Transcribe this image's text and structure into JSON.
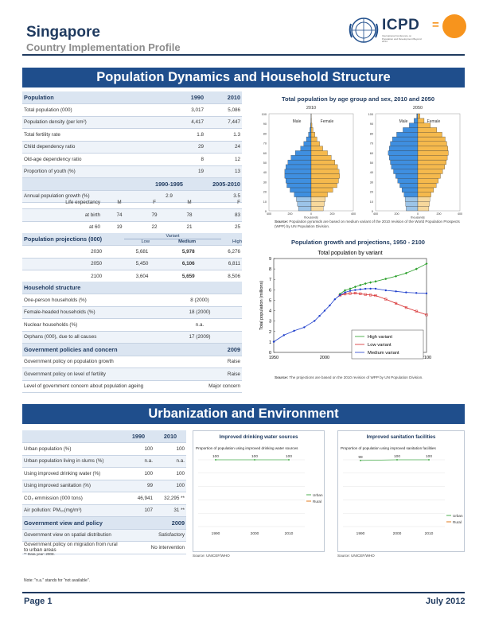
{
  "header": {
    "country": "Singapore",
    "subtitle": "Country Implementation Profile",
    "logo_text": "ICPD",
    "logo_sub": "International Conference on Population and Development Beyond 2014",
    "logo_eq": "="
  },
  "section1": {
    "title": "Population Dynamics and Household Structure"
  },
  "population": {
    "label": "Population",
    "col1": "1990",
    "col2": "2010",
    "rows": [
      {
        "label": "Total population (000)",
        "v1": "3,017",
        "v2": "5,086"
      },
      {
        "label": "Population density (per km²)",
        "v1": "4,417",
        "v2": "7,447"
      },
      {
        "label": "Total fertility rate",
        "v1": "1.8",
        "v2": "1.3"
      },
      {
        "label": "Child dependency ratio",
        "v1": "29",
        "v2": "24"
      },
      {
        "label": "Old-age dependency ratio",
        "v1": "8",
        "v2": "12"
      },
      {
        "label": "Proportion of youth (%)",
        "v1": "19",
        "v2": "13"
      }
    ],
    "period1": "1990-1995",
    "period2": "2005-2010",
    "growth_label": "Annual population growth (%)",
    "growth_v1": "2.9",
    "growth_v2": "3.5",
    "le_label": "Life expectancy",
    "sex_headers": [
      "M",
      "F",
      "M",
      "F"
    ],
    "birth_label": "at birth",
    "birth_values": [
      "74",
      "79",
      "78",
      "83"
    ],
    "sixty_label": "at 60",
    "sixty_values": [
      "19",
      "22",
      "21",
      "25"
    ]
  },
  "projections": {
    "label": "Population projections (000)",
    "variant_label": "Variant",
    "variants": [
      "Low",
      "Medium",
      "High"
    ],
    "rows": [
      {
        "year": "2030",
        "low": "5,681",
        "medium": "5,978",
        "high": "6,276"
      },
      {
        "year": "2050",
        "low": "5,450",
        "medium": "6,106",
        "high": "6,811"
      },
      {
        "year": "2100",
        "low": "3,604",
        "medium": "5,659",
        "high": "8,506"
      }
    ]
  },
  "household": {
    "label": "Household structure",
    "rows": [
      {
        "label": "One-person households (%)",
        "value": "8 (2000)"
      },
      {
        "label": "Female-headed households (%)",
        "value": "18 (2000)"
      },
      {
        "label": "Nuclear households (%)",
        "value": "n.a."
      },
      {
        "label": "Orphans (000), due to all causes",
        "value": "17 (2009)"
      }
    ]
  },
  "policies": {
    "label": "Government policies and concern",
    "year": "2009",
    "rows": [
      {
        "label": "Government policy on population growth",
        "value": "Raise"
      },
      {
        "label": "Government policy on level of fertility",
        "value": "Raise"
      },
      {
        "label": "Level of government concern about population ageing",
        "value": "Major concern"
      }
    ]
  },
  "pyramid": {
    "title": "Total population by age group and sex, 2010 and 2050",
    "years": [
      "2010",
      "2050"
    ],
    "male_label": "Male",
    "female_label": "Female",
    "age_ticks": [
      "100",
      "90",
      "80",
      "70",
      "60",
      "50",
      "40",
      "30",
      "20",
      "10",
      "0"
    ],
    "x_ticks": [
      "400",
      "200",
      "0",
      "200",
      "400"
    ],
    "x_label": "thousands",
    "colors": {
      "male": "#3f8fe0",
      "female": "#f5b94d",
      "male_light": "#9cc4e8",
      "female_light": "#f7d89c",
      "outline": "#333333"
    },
    "source_label": "Source:",
    "source_text": "Population pyramids are based on medium variant of the 2010 revision of the World Population Prospects (WPP) by UN Population Division."
  },
  "growth_chart": {
    "title": "Population growth and projections, 1950 - 2100",
    "source_label": "Source:",
    "source_text": "The projections are based on the 2010 revision of WPP by UN Population Division."
  },
  "section2": {
    "title": "Urbanization and Environment"
  },
  "urban": {
    "col1": "1990",
    "col2": "2010",
    "rows": [
      {
        "label": "Urban population (%)",
        "v1": "100",
        "v2": "100"
      },
      {
        "label": "Urban population living in slums (%)",
        "v1": "n.a.",
        "v2": "n.a."
      },
      {
        "label": "Using improved drinking water (%)",
        "v1": "100",
        "v2": "100"
      },
      {
        "label": "Using improved sanitation (%)",
        "v1": "99",
        "v2": "100"
      },
      {
        "label": "CO₂ emmission (000 tons)",
        "v1": "46,941",
        "v2": "32,295 **"
      },
      {
        "label": "Air pollution: PM₁₀(mg/m³)",
        "v1": "107",
        "v2": "31 **"
      }
    ],
    "view_label": "Government view and policy",
    "view_year": "2009",
    "view_rows": [
      {
        "label": "Government view on spatial distribution",
        "value": "Satisfactory"
      },
      {
        "label": "Government policy on migration from rural to urban areas",
        "value": "No intervention"
      }
    ],
    "footnote": "** Data year: 2008."
  },
  "water_chart": {
    "title": "Improved drinking water sources",
    "subtitle": "Proportion of population using improved drinking water sources",
    "source": "Source: UNICEF/WHO"
  },
  "sanitation_chart": {
    "title": "Improved sanitation facilities",
    "subtitle": "Proportion of population using improved sanitation facilities",
    "source": "Source: UNICEF/WHO"
  },
  "note": "Note: \"n.a.\" stands for \"not available\".",
  "footer": {
    "page": "Page 1",
    "date": "July 2012"
  },
  "chart_data": [
    {
      "type": "line",
      "title": "Total population by variant",
      "xlabel": "",
      "ylabel": "Total population (millions)",
      "xlim": [
        1950,
        2100
      ],
      "ylim": [
        0,
        9
      ],
      "x_ticks": [
        "1950",
        "2000",
        "2050",
        "2100"
      ],
      "y_ticks": [
        "0",
        "1",
        "2",
        "3",
        "4",
        "5",
        "6",
        "7",
        "8",
        "9"
      ],
      "legend_position": "bottom-right",
      "series": [
        {
          "name": "High variant",
          "color": "#2ca02c",
          "marker": "diamond",
          "x": [
            2015,
            2020,
            2025,
            2030,
            2035,
            2040,
            2045,
            2050,
            2060,
            2070,
            2080,
            2090,
            2100
          ],
          "y": [
            5.6,
            5.95,
            6.1,
            6.28,
            6.45,
            6.6,
            6.7,
            6.81,
            7.05,
            7.3,
            7.6,
            8.0,
            8.5
          ]
        },
        {
          "name": "Low variant",
          "color": "#d62728",
          "marker": "square",
          "x": [
            2015,
            2020,
            2025,
            2030,
            2035,
            2040,
            2045,
            2050,
            2060,
            2070,
            2080,
            2090,
            2100
          ],
          "y": [
            5.45,
            5.6,
            5.65,
            5.68,
            5.62,
            5.55,
            5.5,
            5.45,
            5.1,
            4.7,
            4.3,
            3.95,
            3.6
          ]
        },
        {
          "name": "Medium variant",
          "color": "#1f3fcc",
          "marker": "circle",
          "x": [
            1950,
            1960,
            1970,
            1980,
            1990,
            1995,
            2000,
            2005,
            2010,
            2015,
            2020,
            2025,
            2030,
            2035,
            2040,
            2045,
            2050,
            2060,
            2070,
            2080,
            2090,
            2100
          ],
          "y": [
            1.02,
            1.65,
            2.07,
            2.41,
            3.02,
            3.5,
            4.0,
            4.5,
            5.09,
            5.5,
            5.75,
            5.9,
            5.98,
            6.05,
            6.1,
            6.11,
            6.11,
            5.95,
            5.85,
            5.75,
            5.7,
            5.66
          ]
        }
      ]
    },
    {
      "type": "line",
      "title": "Improved drinking water sources",
      "x": [
        1990,
        2000,
        2010
      ],
      "series": [
        {
          "name": "Urban",
          "color": "#4caf50",
          "values": [
            100,
            100,
            100
          ]
        },
        {
          "name": "Rural",
          "color": "#e07b1f",
          "values": [
            null,
            null,
            null
          ]
        }
      ],
      "data_labels": [
        "100",
        "100",
        "100"
      ],
      "x_ticks": [
        "1990",
        "2000",
        "2010"
      ],
      "ylim": [
        0,
        100
      ],
      "legend_position": "right"
    },
    {
      "type": "line",
      "title": "Improved sanitation facilities",
      "x": [
        1990,
        2000,
        2010
      ],
      "series": [
        {
          "name": "Urban",
          "color": "#4caf50",
          "values": [
            99,
            100,
            100
          ]
        },
        {
          "name": "Rural",
          "color": "#e07b1f",
          "values": [
            null,
            null,
            null
          ]
        }
      ],
      "data_labels": [
        "99",
        "100",
        "100"
      ],
      "x_ticks": [
        "1990",
        "2000",
        "2010"
      ],
      "ylim": [
        0,
        100
      ],
      "legend_position": "bottom-right"
    },
    {
      "type": "bar",
      "title": "",
      "year": "2010",
      "age_groups": [
        "0",
        "5",
        "10",
        "15",
        "20",
        "25",
        "30",
        "35",
        "40",
        "45",
        "50",
        "55",
        "60",
        "65",
        "70",
        "75",
        "80",
        "85",
        "90",
        "95",
        "100"
      ],
      "series": [
        {
          "name": "Male",
          "values": [
            120,
            130,
            140,
            160,
            200,
            230,
            240,
            250,
            250,
            240,
            220,
            190,
            150,
            100,
            70,
            45,
            25,
            12,
            5,
            2,
            1
          ]
        },
        {
          "name": "Female",
          "values": [
            115,
            125,
            135,
            155,
            205,
            245,
            260,
            270,
            265,
            250,
            225,
            190,
            155,
            110,
            80,
            55,
            35,
            18,
            8,
            3,
            1
          ]
        }
      ],
      "xlim": [
        -400,
        400
      ]
    },
    {
      "type": "bar",
      "title": "",
      "year": "2050",
      "age_groups": [
        "0",
        "5",
        "10",
        "15",
        "20",
        "25",
        "30",
        "35",
        "40",
        "45",
        "50",
        "55",
        "60",
        "65",
        "70",
        "75",
        "80",
        "85",
        "90",
        "95",
        "100"
      ],
      "series": [
        {
          "name": "Male",
          "values": [
            110,
            115,
            120,
            130,
            150,
            170,
            190,
            210,
            230,
            250,
            260,
            270,
            280,
            270,
            260,
            240,
            200,
            140,
            80,
            35,
            10
          ]
        },
        {
          "name": "Female",
          "values": [
            105,
            110,
            115,
            125,
            150,
            175,
            195,
            215,
            235,
            255,
            270,
            280,
            290,
            285,
            275,
            260,
            230,
            180,
            120,
            60,
            20
          ]
        }
      ],
      "xlim": [
        -400,
        400
      ]
    }
  ]
}
